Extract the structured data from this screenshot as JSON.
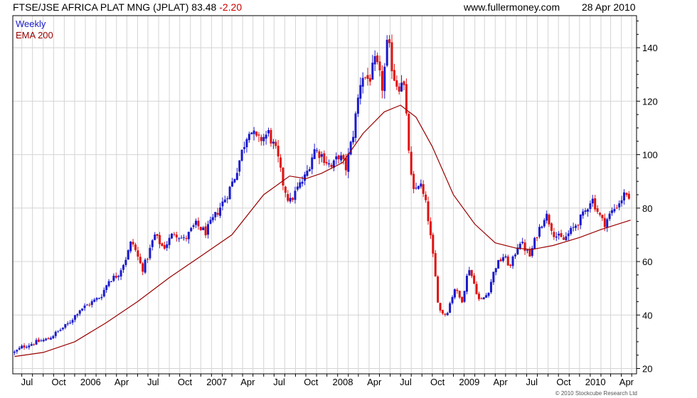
{
  "header": {
    "instrument": "FTSE/JSE AFRICA PLAT MNG (JPLAT)",
    "last_price": "83.48",
    "change": "-2.20",
    "site": "www.fullermoney.com",
    "date": "28 Apr 2010"
  },
  "footer": {
    "copyright": "© 2010 Stockcube Research Ltd"
  },
  "colors": {
    "up": "#1a1acc",
    "down": "#e01010",
    "ema": "#990000",
    "grid": "#d4d4d4",
    "frame": "#000000"
  },
  "chart_data": {
    "type": "candlestick",
    "interval": "Weekly",
    "legend": [
      {
        "label": "Weekly",
        "color": "#1a1acc"
      },
      {
        "label": "EMA 200",
        "color": "#990000"
      }
    ],
    "legend_placement": "top-left",
    "grid": true,
    "ylim": [
      18,
      152
    ],
    "y_ticks": [
      20,
      40,
      60,
      80,
      100,
      120,
      140
    ],
    "y_axis_side": "right",
    "x_range": [
      "2005-06-05",
      "2010-05-15"
    ],
    "x_tick_labels": [
      {
        "date": "2005-07-01",
        "label": "Jul"
      },
      {
        "date": "2005-10-01",
        "label": "Oct"
      },
      {
        "date": "2006-01-01",
        "label": "2006"
      },
      {
        "date": "2006-04-01",
        "label": "Apr"
      },
      {
        "date": "2006-07-01",
        "label": "Jul"
      },
      {
        "date": "2006-10-01",
        "label": "Oct"
      },
      {
        "date": "2007-01-01",
        "label": "2007"
      },
      {
        "date": "2007-04-01",
        "label": "Apr"
      },
      {
        "date": "2007-07-01",
        "label": "Jul"
      },
      {
        "date": "2007-10-01",
        "label": "Oct"
      },
      {
        "date": "2008-01-01",
        "label": "2008"
      },
      {
        "date": "2008-04-01",
        "label": "Apr"
      },
      {
        "date": "2008-07-01",
        "label": "Jul"
      },
      {
        "date": "2008-10-01",
        "label": "Oct"
      },
      {
        "date": "2009-01-01",
        "label": "2009"
      },
      {
        "date": "2009-04-01",
        "label": "Apr"
      },
      {
        "date": "2009-07-01",
        "label": "Jul"
      },
      {
        "date": "2009-10-01",
        "label": "Oct"
      },
      {
        "date": "2010-01-01",
        "label": "2010"
      },
      {
        "date": "2010-04-01",
        "label": "Apr"
      }
    ],
    "close_path": [
      [
        "2005-06-10",
        26
      ],
      [
        "2005-07-01",
        28
      ],
      [
        "2005-08-15",
        30
      ],
      [
        "2005-09-15",
        31
      ],
      [
        "2005-10-15",
        34
      ],
      [
        "2005-11-15",
        37
      ],
      [
        "2005-12-15",
        42
      ],
      [
        "2006-01-10",
        44
      ],
      [
        "2006-02-15",
        47
      ],
      [
        "2006-03-10",
        53
      ],
      [
        "2006-04-05",
        55
      ],
      [
        "2006-05-01",
        62
      ],
      [
        "2006-05-15",
        68
      ],
      [
        "2006-06-15",
        57
      ],
      [
        "2006-07-01",
        62
      ],
      [
        "2006-07-20",
        70
      ],
      [
        "2006-08-15",
        65
      ],
      [
        "2006-09-15",
        71
      ],
      [
        "2006-10-15",
        68
      ],
      [
        "2006-11-15",
        74
      ],
      [
        "2006-12-15",
        71
      ],
      [
        "2007-01-20",
        79
      ],
      [
        "2007-02-15",
        85
      ],
      [
        "2007-03-10",
        92
      ],
      [
        "2007-04-01",
        102
      ],
      [
        "2007-04-20",
        110
      ],
      [
        "2007-05-15",
        105
      ],
      [
        "2007-06-15",
        108
      ],
      [
        "2007-07-10",
        100
      ],
      [
        "2007-07-25",
        90
      ],
      [
        "2007-08-15",
        82
      ],
      [
        "2007-09-10",
        88
      ],
      [
        "2007-10-01",
        92
      ],
      [
        "2007-10-25",
        102
      ],
      [
        "2007-11-15",
        100
      ],
      [
        "2007-12-15",
        95
      ],
      [
        "2008-01-05",
        100
      ],
      [
        "2008-01-25",
        95
      ],
      [
        "2008-02-15",
        108
      ],
      [
        "2008-03-10",
        130
      ],
      [
        "2008-04-01",
        128
      ],
      [
        "2008-04-20",
        135
      ],
      [
        "2008-05-10",
        125
      ],
      [
        "2008-05-25",
        143
      ],
      [
        "2008-06-10",
        130
      ],
      [
        "2008-06-25",
        125
      ],
      [
        "2008-07-08",
        130
      ],
      [
        "2008-07-20",
        110
      ],
      [
        "2008-08-05",
        85
      ],
      [
        "2008-08-25",
        90
      ],
      [
        "2008-09-15",
        80
      ],
      [
        "2008-10-05",
        60
      ],
      [
        "2008-10-20",
        42
      ],
      [
        "2008-11-10",
        40
      ],
      [
        "2008-12-05",
        50
      ],
      [
        "2008-12-25",
        45
      ],
      [
        "2009-01-15",
        58
      ],
      [
        "2009-02-15",
        45
      ],
      [
        "2009-03-10",
        48
      ],
      [
        "2009-04-01",
        58
      ],
      [
        "2009-04-25",
        62
      ],
      [
        "2009-05-15",
        58
      ],
      [
        "2009-06-10",
        68
      ],
      [
        "2009-07-10",
        62
      ],
      [
        "2009-07-30",
        70
      ],
      [
        "2009-08-25",
        78
      ],
      [
        "2009-09-20",
        70
      ],
      [
        "2009-10-15",
        68
      ],
      [
        "2009-11-10",
        72
      ],
      [
        "2009-12-15",
        78
      ],
      [
        "2010-01-05",
        84
      ],
      [
        "2010-01-25",
        78
      ],
      [
        "2010-02-10",
        74
      ],
      [
        "2010-03-01",
        78
      ],
      [
        "2010-03-25",
        82
      ],
      [
        "2010-04-15",
        86
      ],
      [
        "2010-04-28",
        83.5
      ]
    ],
    "ema200": [
      [
        "2005-06-10",
        24.5
      ],
      [
        "2005-09-01",
        26
      ],
      [
        "2005-12-01",
        30
      ],
      [
        "2006-03-01",
        37
      ],
      [
        "2006-06-01",
        45
      ],
      [
        "2006-09-01",
        54
      ],
      [
        "2006-12-01",
        62
      ],
      [
        "2007-03-01",
        70
      ],
      [
        "2007-06-01",
        85
      ],
      [
        "2007-08-15",
        92
      ],
      [
        "2007-10-01",
        91
      ],
      [
        "2007-11-15",
        93
      ],
      [
        "2008-01-15",
        97
      ],
      [
        "2008-03-15",
        108
      ],
      [
        "2008-05-15",
        116
      ],
      [
        "2008-07-01",
        118.5
      ],
      [
        "2008-08-15",
        114
      ],
      [
        "2008-10-01",
        103
      ],
      [
        "2008-12-01",
        85
      ],
      [
        "2009-02-01",
        74
      ],
      [
        "2009-04-01",
        67
      ],
      [
        "2009-06-01",
        65
      ],
      [
        "2009-07-15",
        64.5
      ],
      [
        "2009-09-15",
        66
      ],
      [
        "2009-12-01",
        69
      ],
      [
        "2010-02-01",
        72
      ],
      [
        "2010-04-28",
        75.5
      ]
    ]
  }
}
